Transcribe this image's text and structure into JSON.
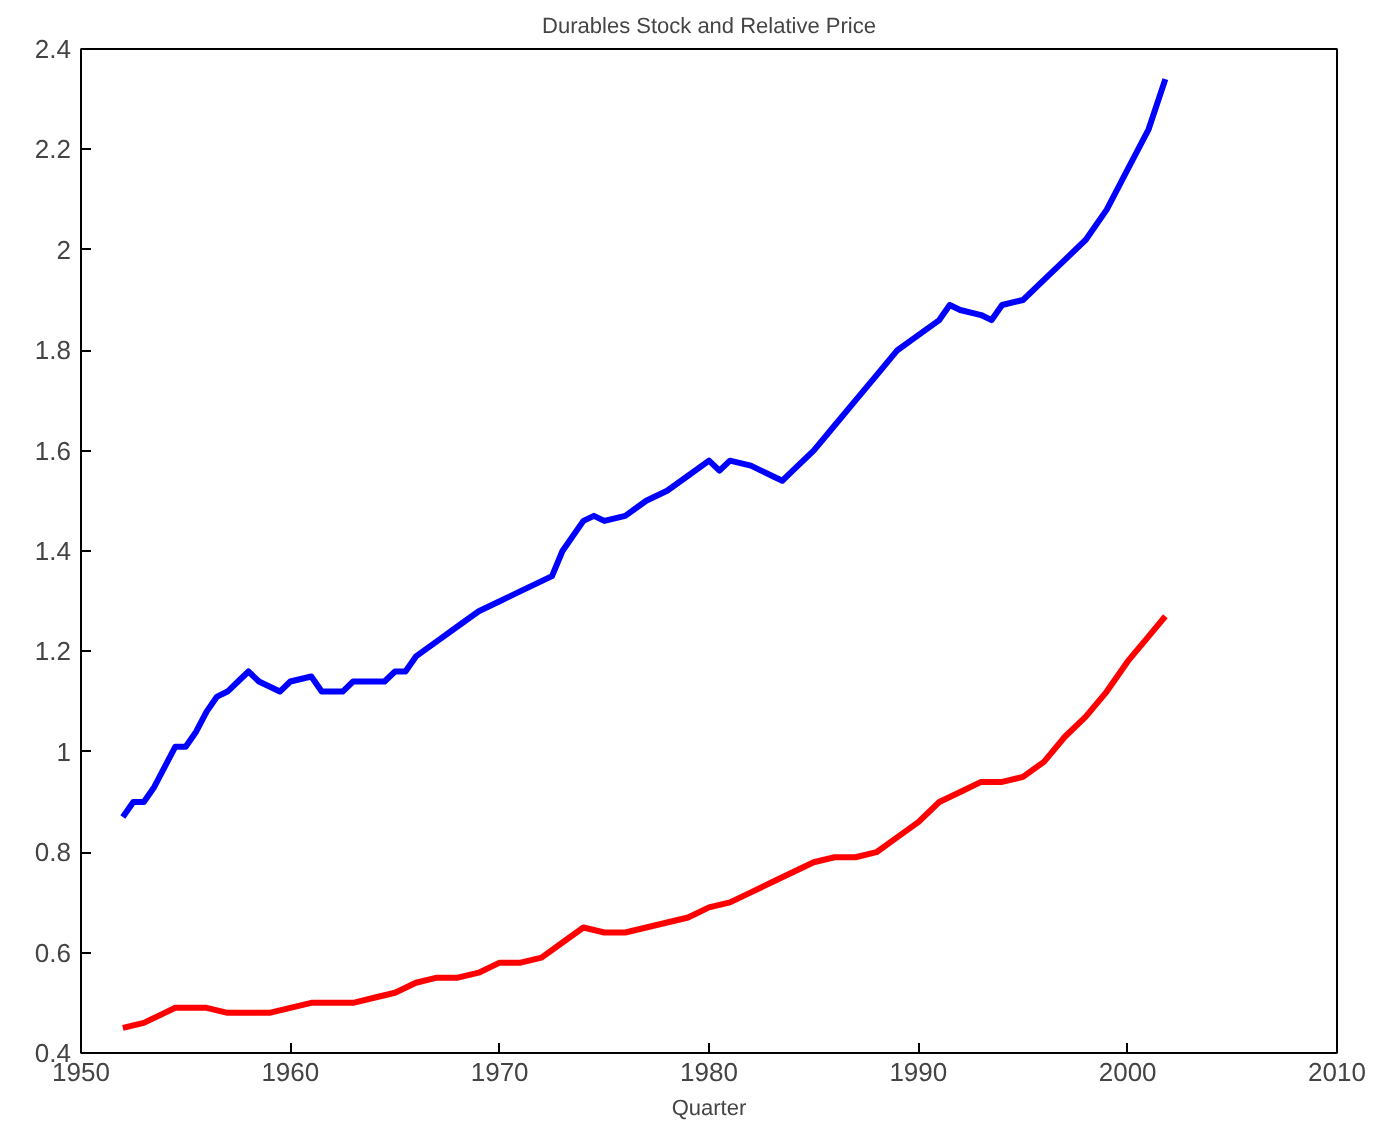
{
  "chart_data": {
    "type": "line",
    "title": "Durables Stock and Relative Price",
    "xlabel": "Quarter",
    "xlim": [
      1950,
      2010
    ],
    "xticks": [
      1950,
      1960,
      1970,
      1980,
      1990,
      2000,
      2010
    ],
    "ylim": [
      0.4,
      2.4
    ],
    "yticks": [
      0.4,
      0.6,
      0.8,
      1,
      1.2,
      1.4,
      1.6,
      1.8,
      2,
      2.2,
      2.4
    ],
    "grid": false,
    "line_style": "solid",
    "series": [
      {
        "color": "#0000ff",
        "x": [
          1952,
          1952.5,
          1953,
          1953.5,
          1954,
          1954.5,
          1955,
          1955.5,
          1956,
          1956.5,
          1957,
          1957.5,
          1958,
          1958.5,
          1959,
          1959.5,
          1960,
          1961,
          1961.5,
          1962,
          1962.5,
          1963,
          1964,
          1964.5,
          1965,
          1965.5,
          1966,
          1967,
          1968,
          1969,
          1970,
          1971,
          1972,
          1972.5,
          1973,
          1974,
          1974.5,
          1975,
          1976,
          1977,
          1978,
          1979,
          1980,
          1980.5,
          1981,
          1982,
          1983,
          1983.5,
          1984,
          1985,
          1986,
          1987,
          1988,
          1989,
          1990,
          1991,
          1991.5,
          1992,
          1993,
          1993.5,
          1994,
          1995,
          1996,
          1997,
          1998,
          1999,
          2000,
          2001,
          2001.8
        ],
        "values": [
          0.87,
          0.9,
          0.9,
          0.93,
          0.97,
          1.01,
          1.01,
          1.04,
          1.08,
          1.11,
          1.12,
          1.14,
          1.16,
          1.14,
          1.13,
          1.12,
          1.14,
          1.15,
          1.12,
          1.12,
          1.12,
          1.14,
          1.14,
          1.14,
          1.16,
          1.16,
          1.19,
          1.22,
          1.25,
          1.28,
          1.3,
          1.32,
          1.34,
          1.35,
          1.4,
          1.46,
          1.47,
          1.46,
          1.47,
          1.5,
          1.52,
          1.55,
          1.58,
          1.56,
          1.58,
          1.57,
          1.55,
          1.54,
          1.56,
          1.6,
          1.65,
          1.7,
          1.75,
          1.8,
          1.83,
          1.86,
          1.89,
          1.88,
          1.87,
          1.86,
          1.89,
          1.9,
          1.94,
          1.98,
          2.02,
          2.08,
          2.16,
          2.24,
          2.34
        ]
      },
      {
        "color": "#ff0000",
        "x": [
          1952,
          1953,
          1954,
          1954.5,
          1955,
          1956,
          1957,
          1958,
          1959,
          1960,
          1961,
          1962,
          1963,
          1964,
          1965,
          1966,
          1967,
          1968,
          1969,
          1970,
          1971,
          1972,
          1973,
          1974,
          1975,
          1976,
          1977,
          1978,
          1979,
          1980,
          1981,
          1982,
          1983,
          1984,
          1985,
          1986,
          1987,
          1988,
          1989,
          1990,
          1991,
          1992,
          1993,
          1994,
          1995,
          1996,
          1997,
          1998,
          1999,
          2000,
          2001,
          2001.8
        ],
        "values": [
          0.45,
          0.46,
          0.48,
          0.49,
          0.49,
          0.49,
          0.48,
          0.48,
          0.48,
          0.49,
          0.5,
          0.5,
          0.5,
          0.51,
          0.52,
          0.54,
          0.55,
          0.55,
          0.56,
          0.58,
          0.58,
          0.59,
          0.62,
          0.65,
          0.64,
          0.64,
          0.65,
          0.66,
          0.67,
          0.69,
          0.7,
          0.72,
          0.74,
          0.76,
          0.78,
          0.79,
          0.79,
          0.8,
          0.83,
          0.86,
          0.9,
          0.92,
          0.94,
          0.94,
          0.95,
          0.98,
          1.03,
          1.07,
          1.12,
          1.18,
          1.23,
          1.27
        ]
      }
    ]
  }
}
